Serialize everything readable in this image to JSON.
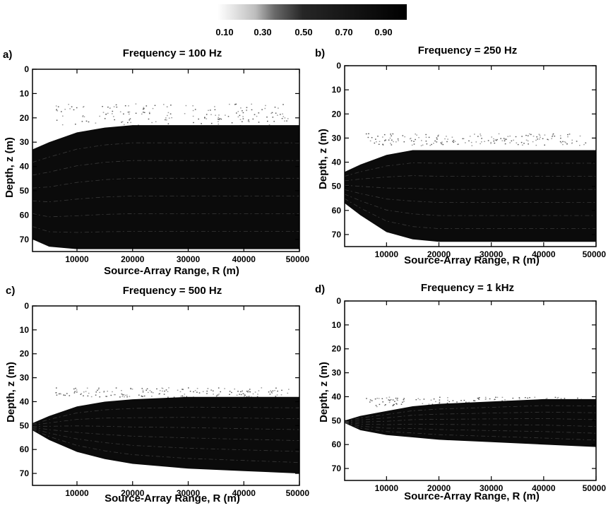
{
  "colorbar": {
    "ticks": [
      "0.10",
      "0.30",
      "0.50",
      "0.70",
      "0.90"
    ],
    "range": [
      0.0,
      1.0
    ],
    "low_color": "#ffffff",
    "high_color": "#000000"
  },
  "chart_data": [
    {
      "type": "heatmap",
      "panel": "a)",
      "title": "Frequency = 100 Hz",
      "xlabel": "Source-Array Range, R (m)",
      "ylabel": "Depth, z (m)",
      "xlim": [
        2000,
        50000
      ],
      "ylim": [
        75,
        0
      ],
      "xticks": [
        10000,
        20000,
        30000,
        40000,
        50000
      ],
      "yticks": [
        0,
        10,
        20,
        30,
        40,
        50,
        60,
        70
      ],
      "dark_band": {
        "range_m": [
          2000,
          5000,
          10000,
          15000,
          20000,
          30000,
          40000,
          50000
        ],
        "upper_depth_m": [
          33,
          30,
          26,
          24,
          23,
          23,
          23,
          23
        ],
        "lower_depth_m": [
          70,
          73,
          74,
          74,
          74,
          74,
          74,
          74
        ]
      },
      "faint_speckle_depth_m": [
        14,
        23
      ]
    },
    {
      "type": "heatmap",
      "panel": "b)",
      "title": "Frequency = 250 Hz",
      "xlabel": "Source-Array Range, R (m)",
      "ylabel": "Depth, z (m)",
      "xlim": [
        2000,
        50000
      ],
      "ylim": [
        75,
        0
      ],
      "xticks": [
        10000,
        20000,
        30000,
        40000,
        50000
      ],
      "yticks": [
        0,
        10,
        20,
        30,
        40,
        50,
        60,
        70
      ],
      "dark_band": {
        "range_m": [
          2000,
          5000,
          10000,
          15000,
          20000,
          30000,
          40000,
          50000
        ],
        "upper_depth_m": [
          44,
          41,
          37,
          35,
          35,
          35,
          35,
          35
        ],
        "lower_depth_m": [
          57,
          62,
          69,
          72,
          73,
          73,
          73,
          73
        ]
      },
      "faint_speckle_depth_m": [
        28,
        33
      ]
    },
    {
      "type": "heatmap",
      "panel": "c)",
      "title": "Frequency = 500 Hz",
      "xlabel": "Source-Array Range, R (m)",
      "ylabel": "Depth, z (m)",
      "xlim": [
        2000,
        50000
      ],
      "ylim": [
        75,
        0
      ],
      "xticks": [
        10000,
        20000,
        30000,
        40000,
        50000
      ],
      "yticks": [
        0,
        10,
        20,
        30,
        40,
        50,
        60,
        70
      ],
      "dark_band": {
        "range_m": [
          2000,
          5000,
          10000,
          15000,
          20000,
          30000,
          40000,
          50000
        ],
        "upper_depth_m": [
          49,
          46,
          42,
          40,
          39,
          38,
          38,
          38
        ],
        "lower_depth_m": [
          52,
          56,
          61,
          64,
          66,
          68,
          69,
          70
        ]
      },
      "faint_speckle_depth_m": [
        34,
        38
      ]
    },
    {
      "type": "heatmap",
      "panel": "d)",
      "title": "Frequency = 1 kHz",
      "xlabel": "Source-Array Range, R (m)",
      "ylabel": "Depth, z (m)",
      "xlim": [
        2000,
        50000
      ],
      "ylim": [
        75,
        0
      ],
      "xticks": [
        10000,
        20000,
        30000,
        40000,
        50000
      ],
      "yticks": [
        0,
        10,
        20,
        30,
        40,
        50,
        60,
        70
      ],
      "dark_band": {
        "range_m": [
          2000,
          5000,
          10000,
          15000,
          20000,
          30000,
          40000,
          50000
        ],
        "upper_depth_m": [
          50,
          48,
          46,
          44,
          43,
          42,
          41,
          41
        ],
        "lower_depth_m": [
          51,
          54,
          56,
          57,
          58,
          59,
          60,
          61
        ]
      },
      "faint_speckle_depth_m": [
        40,
        44
      ]
    }
  ]
}
